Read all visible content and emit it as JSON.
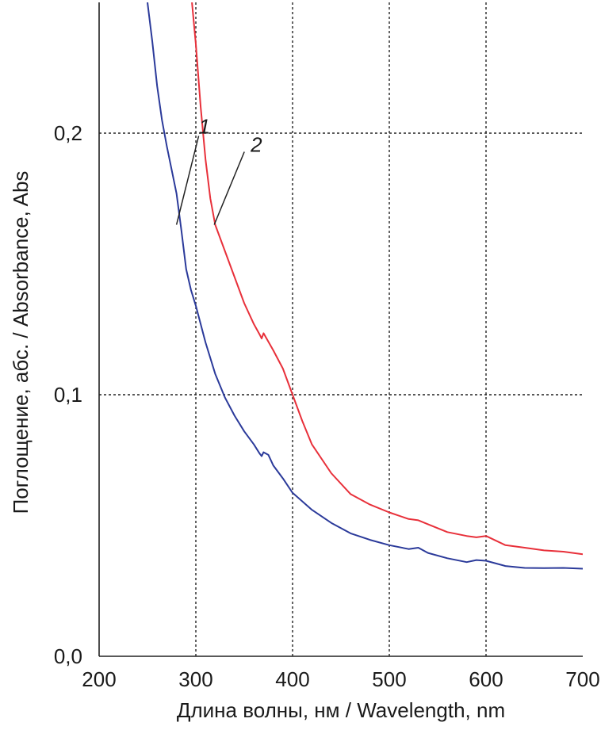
{
  "chart_data": {
    "type": "line",
    "xlabel": "Длина волны, нм / Wavelength, nm",
    "ylabel": "Поглощение, абс. / Absorbance, Abs",
    "xlim": [
      200,
      700
    ],
    "ylim": [
      0.0,
      0.25
    ],
    "x_ticks": [
      200,
      300,
      400,
      500,
      600,
      700
    ],
    "x_tick_labels": [
      "200",
      "300",
      "400",
      "500",
      "600",
      "700"
    ],
    "y_ticks": [
      0.0,
      0.1,
      0.2
    ],
    "y_tick_labels": [
      "0,0",
      "0,1",
      "0,2"
    ],
    "grid": true,
    "series": [
      {
        "name": "1",
        "color": "#2b3a9a",
        "points": [
          [
            250,
            0.25
          ],
          [
            255,
            0.235
          ],
          [
            260,
            0.218
          ],
          [
            265,
            0.205
          ],
          [
            270,
            0.195
          ],
          [
            275,
            0.186
          ],
          [
            280,
            0.177
          ],
          [
            285,
            0.163
          ],
          [
            290,
            0.148
          ],
          [
            295,
            0.14
          ],
          [
            300,
            0.134
          ],
          [
            310,
            0.12
          ],
          [
            320,
            0.108
          ],
          [
            330,
            0.099
          ],
          [
            340,
            0.092
          ],
          [
            350,
            0.086
          ],
          [
            360,
            0.081
          ],
          [
            366,
            0.0775
          ],
          [
            368,
            0.0765
          ],
          [
            370,
            0.078
          ],
          [
            375,
            0.077
          ],
          [
            380,
            0.073
          ],
          [
            390,
            0.068
          ],
          [
            400,
            0.0625
          ],
          [
            420,
            0.056
          ],
          [
            440,
            0.051
          ],
          [
            460,
            0.047
          ],
          [
            480,
            0.0445
          ],
          [
            500,
            0.0425
          ],
          [
            520,
            0.041
          ],
          [
            530,
            0.0415
          ],
          [
            540,
            0.0395
          ],
          [
            560,
            0.0375
          ],
          [
            580,
            0.036
          ],
          [
            590,
            0.0368
          ],
          [
            600,
            0.0365
          ],
          [
            620,
            0.0345
          ],
          [
            640,
            0.0338
          ],
          [
            660,
            0.0337
          ],
          [
            680,
            0.0338
          ],
          [
            700,
            0.0335
          ]
        ]
      },
      {
        "name": "2",
        "color": "#e8303a",
        "points": [
          [
            296,
            0.25
          ],
          [
            300,
            0.234
          ],
          [
            305,
            0.21
          ],
          [
            310,
            0.19
          ],
          [
            315,
            0.175
          ],
          [
            320,
            0.165
          ],
          [
            330,
            0.155
          ],
          [
            340,
            0.145
          ],
          [
            350,
            0.135
          ],
          [
            360,
            0.127
          ],
          [
            366,
            0.123
          ],
          [
            368,
            0.1215
          ],
          [
            370,
            0.1235
          ],
          [
            380,
            0.117
          ],
          [
            390,
            0.11
          ],
          [
            400,
            0.1
          ],
          [
            410,
            0.09
          ],
          [
            420,
            0.081
          ],
          [
            440,
            0.07
          ],
          [
            460,
            0.062
          ],
          [
            480,
            0.058
          ],
          [
            500,
            0.055
          ],
          [
            520,
            0.0525
          ],
          [
            530,
            0.052
          ],
          [
            540,
            0.0505
          ],
          [
            560,
            0.0475
          ],
          [
            580,
            0.046
          ],
          [
            590,
            0.0455
          ],
          [
            600,
            0.046
          ],
          [
            620,
            0.0425
          ],
          [
            640,
            0.0415
          ],
          [
            660,
            0.0405
          ],
          [
            680,
            0.04
          ],
          [
            700,
            0.039
          ]
        ]
      }
    ],
    "annotations": [
      {
        "text": "1",
        "series": "1",
        "x": 280,
        "y": 0.165
      },
      {
        "text": "2",
        "series": "2",
        "x": 319,
        "y": 0.165
      }
    ]
  }
}
